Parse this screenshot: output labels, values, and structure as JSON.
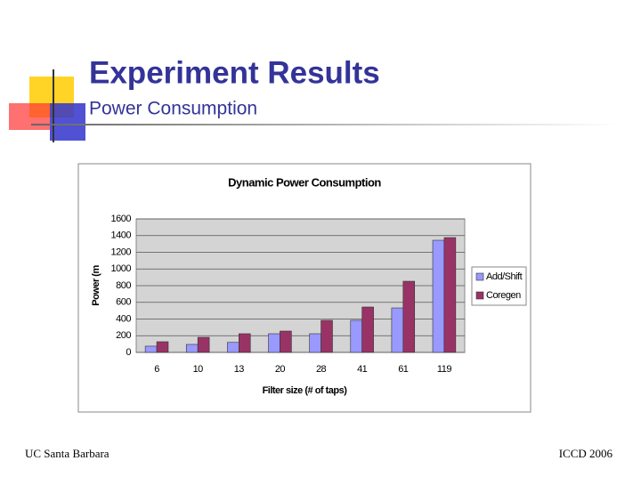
{
  "slide": {
    "title": "Experiment Results",
    "subtitle": "Power Consumption",
    "footer_left": "UC Santa Barbara",
    "footer_right": "ICCD 2006"
  },
  "chart_data": {
    "type": "bar",
    "title": "Dynamic Power Consumption",
    "x_label": "Filter size (# of taps)",
    "y_label": "Power (m",
    "categories": [
      "6",
      "10",
      "13",
      "20",
      "28",
      "41",
      "61",
      "119"
    ],
    "series": [
      {
        "name": "Add/Shift",
        "color": "#9999ff",
        "values": [
          75,
          96,
          120,
          224,
          224,
          384,
          533,
          1344
        ]
      },
      {
        "name": "Coregen",
        "color": "#993366",
        "values": [
          128,
          181,
          224,
          256,
          384,
          544,
          853,
          1376
        ]
      }
    ],
    "ylim": [
      0,
      1600
    ],
    "yticks": [
      0,
      200,
      400,
      600,
      800,
      1000,
      1200,
      1400,
      1600
    ],
    "grid": true,
    "legend": "right"
  }
}
